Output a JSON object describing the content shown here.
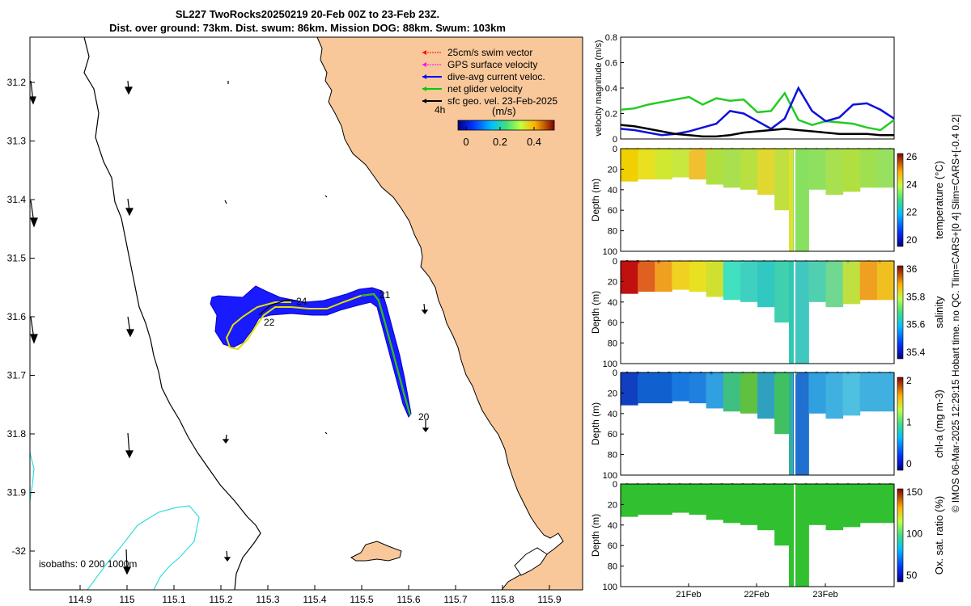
{
  "header": {
    "title_line1": "SL227 TwoRocks20250219 20-Feb 00Z to 23-Feb 23Z.",
    "title_line2": "Dist. over ground: 73km. Dist. swum: 86km. Mission DOG: 88km. Swum: 103km"
  },
  "map": {
    "x_ticks": [
      "114.9",
      "115",
      "115.1",
      "115.2",
      "115.3",
      "115.4",
      "115.5",
      "115.6",
      "115.7",
      "115.8",
      "115.9"
    ],
    "y_ticks": [
      "31.2",
      "31.3",
      "31.4",
      "31.5",
      "31.6",
      "31.7",
      "31.8",
      "31.9",
      "-32"
    ],
    "legend": [
      {
        "label": "25cm/s swim vector",
        "color": "#ff0000"
      },
      {
        "label": "GPS surface velocity",
        "color": "#ff00ff"
      },
      {
        "label": "dive-avg current veloc.",
        "color": "#0000ff"
      },
      {
        "label": "net glider velocity",
        "color": "#00cc00"
      },
      {
        "label": "sfc geo. vel. 23-Feb-2025",
        "color": "#000000"
      }
    ],
    "legend_side_label": "4h",
    "colorbar_label": "(m/s)",
    "colorbar_ticks": [
      "0",
      "0.2",
      "0.4"
    ],
    "day_labels": [
      {
        "text": "20"
      },
      {
        "text": "21"
      },
      {
        "text": "22"
      },
      {
        "text": "24"
      }
    ],
    "isobath_label": "isobaths: 0   200  1000m",
    "land_color": "#f8c89a",
    "isobath_color": "#33dddd"
  },
  "panels": [
    {
      "ylabel": "velocity magnitude (m/s)",
      "yticks": [
        "0",
        "0.2",
        "0.4",
        "0.6",
        "0.8"
      ]
    },
    {
      "ylabel": "Depth (m)",
      "cbar_label": "temperature (°C)",
      "cbar_ticks": [
        "26",
        "24",
        "22",
        "20"
      ],
      "yticks": [
        "0",
        "20",
        "40",
        "60",
        "80",
        "100"
      ]
    },
    {
      "ylabel": "Depth (m)",
      "cbar_label": "salinity",
      "cbar_ticks": [
        "36",
        "35.8",
        "35.6",
        "35.4"
      ],
      "yticks": [
        "0",
        "20",
        "40",
        "60",
        "80",
        "100"
      ]
    },
    {
      "ylabel": "Depth (m)",
      "cbar_label": "chl-a (mg m-3)",
      "cbar_ticks": [
        "2",
        "1",
        "0"
      ],
      "yticks": [
        "0",
        "20",
        "40",
        "60",
        "80",
        "100"
      ]
    },
    {
      "ylabel": "Depth (m)",
      "cbar_label": "Ox. sat. ratio (%)",
      "cbar_ticks": [
        "150",
        "100",
        "50"
      ],
      "yticks": [
        "0",
        "20",
        "40",
        "60",
        "80",
        "100"
      ]
    }
  ],
  "time_ticks": [
    "21Feb",
    "22Feb",
    "23Feb"
  ],
  "footer": "© IMOS 06-Mar-2025 12:29:15 Hobart time. no QC. Tlim=CARS+[0 4] Slim=CARS+[-0.4 0.2]",
  "chart_data": [
    {
      "type": "line",
      "title": "velocity magnitude",
      "ylabel": "velocity magnitude (m/s)",
      "ylim": [
        0,
        0.8
      ],
      "xlim": [
        0,
        4
      ],
      "x": [
        0,
        0.2,
        0.4,
        0.6,
        0.8,
        1.0,
        1.2,
        1.4,
        1.6,
        1.8,
        2.0,
        2.2,
        2.4,
        2.6,
        2.8,
        3.0,
        3.2,
        3.4,
        3.6,
        3.8,
        4.0
      ],
      "series": [
        {
          "name": "net glider velocity",
          "color": "#22cc22",
          "values": [
            0.23,
            0.24,
            0.27,
            0.29,
            0.31,
            0.33,
            0.27,
            0.32,
            0.3,
            0.31,
            0.21,
            0.22,
            0.36,
            0.15,
            0.11,
            0.14,
            0.13,
            0.12,
            0.09,
            0.07,
            0.15
          ]
        },
        {
          "name": "dive-avg current veloc.",
          "color": "#1010dd",
          "values": [
            0.08,
            0.07,
            0.05,
            0.03,
            0.04,
            0.06,
            0.09,
            0.12,
            0.22,
            0.2,
            0.14,
            0.08,
            0.16,
            0.4,
            0.22,
            0.14,
            0.17,
            0.27,
            0.28,
            0.23,
            0.16
          ]
        },
        {
          "name": "sfc geo. vel.",
          "color": "#000000",
          "values": [
            0.11,
            0.1,
            0.08,
            0.06,
            0.04,
            0.03,
            0.02,
            0.02,
            0.03,
            0.05,
            0.06,
            0.07,
            0.08,
            0.07,
            0.06,
            0.05,
            0.04,
            0.04,
            0.04,
            0.03,
            0.03
          ]
        }
      ]
    },
    {
      "type": "heatmap",
      "variable": "temperature",
      "clim": [
        19.5,
        26
      ],
      "ylim": [
        0,
        100
      ],
      "mixed_depth": [
        32,
        30,
        30,
        28,
        30,
        35,
        38,
        40,
        45,
        60,
        100,
        40,
        45,
        42,
        38,
        38
      ]
    },
    {
      "type": "heatmap",
      "variable": "salinity",
      "clim": [
        35.3,
        36.1
      ],
      "ylim": [
        0,
        100
      ],
      "mixed_depth": [
        32,
        30,
        30,
        28,
        30,
        35,
        38,
        40,
        45,
        60,
        100,
        40,
        45,
        42,
        38,
        38
      ]
    },
    {
      "type": "heatmap",
      "variable": "chl-a",
      "clim": [
        0,
        2
      ],
      "ylim": [
        0,
        100
      ],
      "mixed_depth": [
        32,
        30,
        30,
        28,
        30,
        35,
        38,
        40,
        45,
        60,
        100,
        40,
        45,
        42,
        38,
        38
      ]
    },
    {
      "type": "heatmap",
      "variable": "oxygen saturation",
      "clim": [
        25,
        175
      ],
      "ylim": [
        0,
        100
      ],
      "mixed_depth": [
        32,
        30,
        30,
        28,
        30,
        35,
        38,
        40,
        45,
        60,
        100,
        40,
        45,
        42,
        38,
        38
      ]
    }
  ]
}
